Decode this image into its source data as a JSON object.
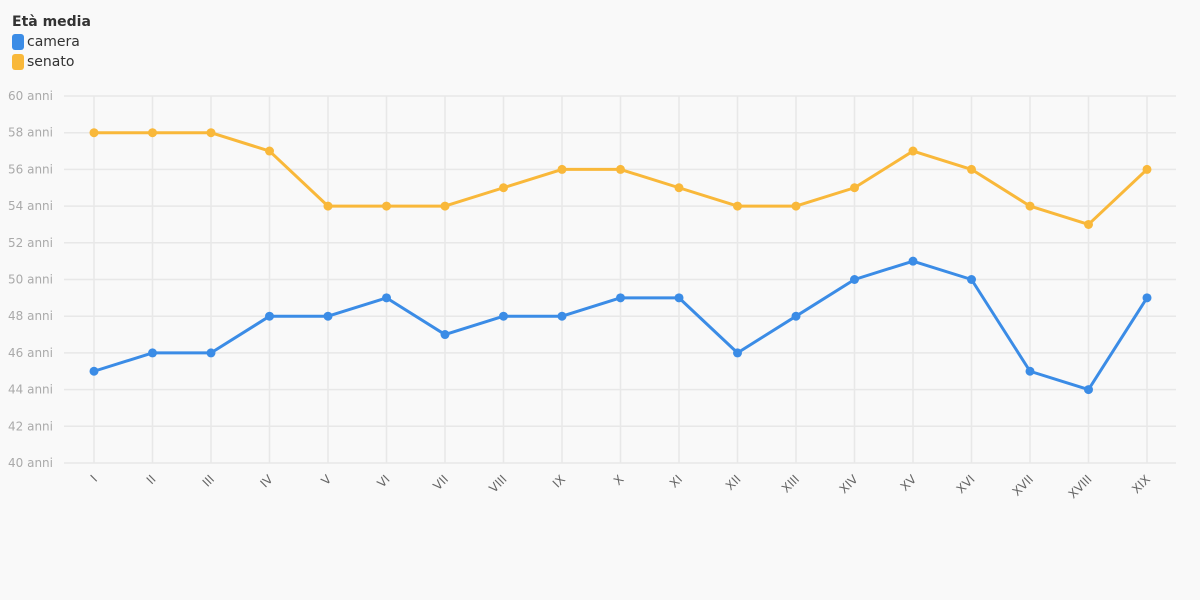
{
  "legend": {
    "title": "Età media",
    "items": [
      {
        "label": "camera",
        "color": "#3b8ce6"
      },
      {
        "label": "senato",
        "color": "#f9b83a"
      }
    ]
  },
  "chart_data": {
    "type": "line",
    "categories": [
      "I",
      "II",
      "III",
      "IV",
      "V",
      "VI",
      "VII",
      "VIII",
      "IX",
      "X",
      "XI",
      "XII",
      "XIII",
      "XIV",
      "XV",
      "XVI",
      "XVII",
      "XVIII",
      "XIX"
    ],
    "series": [
      {
        "name": "camera",
        "color": "#3b8ce6",
        "values": [
          45,
          46,
          46,
          48,
          48,
          49,
          47,
          48,
          48,
          49,
          49,
          46,
          48,
          50,
          51,
          50,
          45,
          44,
          49
        ]
      },
      {
        "name": "senato",
        "color": "#f9b83a",
        "values": [
          58,
          58,
          58,
          57,
          54,
          54,
          54,
          55,
          56,
          56,
          55,
          54,
          54,
          55,
          57,
          56,
          54,
          53,
          56
        ]
      }
    ],
    "ylim": [
      40,
      60
    ],
    "yticks": [
      40,
      42,
      44,
      46,
      48,
      50,
      52,
      54,
      56,
      58,
      60
    ],
    "ytick_suffix": " anni",
    "grid": true,
    "legend_position": "top-left"
  }
}
